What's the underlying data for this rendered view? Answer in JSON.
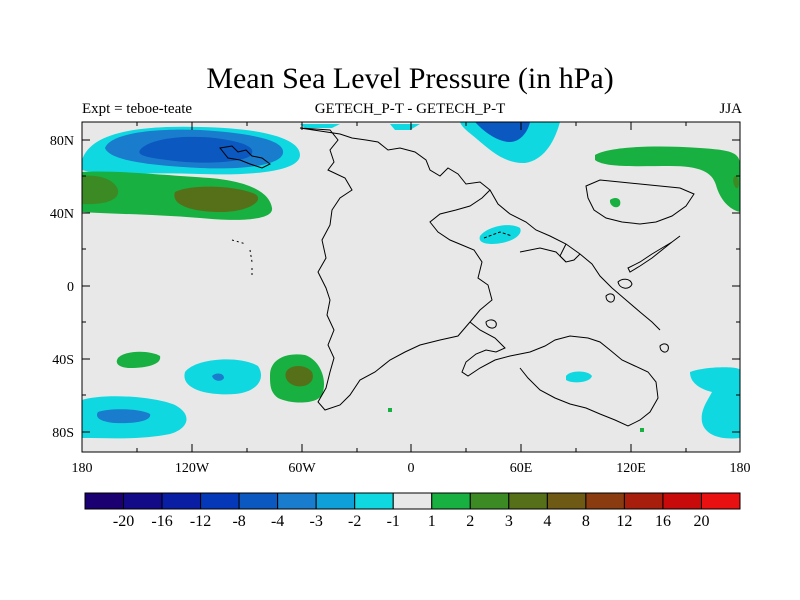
{
  "header": {
    "title": "Mean Sea Level Pressure (in hPa)",
    "left": "Expt = teboe-teate",
    "center": "GETECH_P-T - GETECH_P-T",
    "right": "JJA"
  },
  "axes": {
    "x_ticks": [
      "180",
      "120W",
      "60W",
      "0",
      "60E",
      "120E",
      "180"
    ],
    "y_ticks": [
      "80N",
      "40N",
      "0",
      "40S",
      "80S"
    ]
  },
  "colorbar": {
    "labels": [
      "-20",
      "-16",
      "-12",
      "-8",
      "-4",
      "-3",
      "-2",
      "-1",
      "1",
      "2",
      "3",
      "4",
      "8",
      "12",
      "16",
      "20"
    ],
    "colors": [
      "#1a0070",
      "#120a86",
      "#0a1ea4",
      "#0538b8",
      "#0a58c0",
      "#1a7ccc",
      "#0ea0d8",
      "#10d8e0",
      "#e8e8e8",
      "#18b040",
      "#3c8a24",
      "#56701a",
      "#6e5a14",
      "#8a3c10",
      "#a81e0c",
      "#c80a0a",
      "#e81010"
    ]
  },
  "map": {
    "background": "#e8e8e8",
    "anomalies": [
      {
        "region": "North Pacific 75N",
        "level": "-4"
      },
      {
        "region": "North Pacific 55N",
        "level": "3"
      },
      {
        "region": "Arctic 60E",
        "level": "-8"
      },
      {
        "region": "Eurasia 40N 80E",
        "level": "-1"
      },
      {
        "region": "North Pacific 140E",
        "level": "2"
      },
      {
        "region": "South Pacific 50S 60W",
        "level": "3"
      },
      {
        "region": "Southern Ocean 75S 150W",
        "level": "-2"
      },
      {
        "region": "Southern Ocean 65S 170E",
        "level": "-1"
      }
    ]
  }
}
